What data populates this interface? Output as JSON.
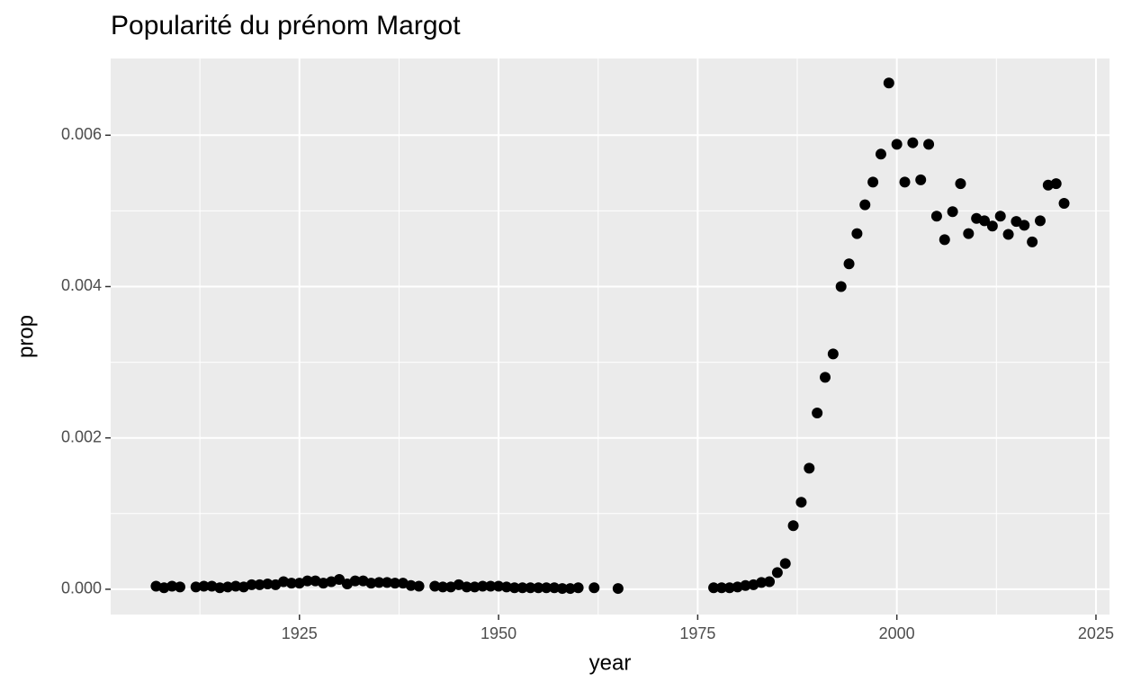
{
  "chart_data": {
    "type": "scatter",
    "title": "Popularité du prénom Margot",
    "x_label": "year",
    "y_label": "prop",
    "color": "#000000",
    "x": [
      1907,
      1908,
      1909,
      1910,
      1912,
      1913,
      1914,
      1915,
      1916,
      1917,
      1918,
      1919,
      1920,
      1921,
      1922,
      1923,
      1924,
      1925,
      1926,
      1927,
      1928,
      1929,
      1930,
      1931,
      1932,
      1933,
      1934,
      1935,
      1936,
      1937,
      1938,
      1939,
      1940,
      1942,
      1943,
      1944,
      1945,
      1946,
      1947,
      1948,
      1949,
      1950,
      1951,
      1952,
      1953,
      1954,
      1955,
      1956,
      1957,
      1958,
      1959,
      1960,
      1962,
      1965,
      1977,
      1978,
      1979,
      1980,
      1981,
      1982,
      1983,
      1984,
      1985,
      1986,
      1987,
      1988,
      1989,
      1990,
      1991,
      1992,
      1993,
      1994,
      1995,
      1996,
      1997,
      1998,
      1999,
      2000,
      2001,
      2002,
      2003,
      2004,
      2005,
      2006,
      2007,
      2008,
      2009,
      2010,
      2011,
      2012,
      2013,
      2014,
      2015,
      2016,
      2017,
      2018,
      2019,
      2020,
      2021
    ],
    "values": [
      4e-05,
      2e-05,
      4e-05,
      3e-05,
      3e-05,
      4e-05,
      4e-05,
      2e-05,
      3e-05,
      4e-05,
      3e-05,
      6e-05,
      6e-05,
      7e-05,
      6e-05,
      0.0001,
      8e-05,
      8e-05,
      0.00011,
      0.00011,
      8e-05,
      0.0001,
      0.00013,
      7e-05,
      0.00011,
      0.00011,
      8e-05,
      9e-05,
      9e-05,
      8e-05,
      8e-05,
      5e-05,
      4e-05,
      4e-05,
      3e-05,
      3e-05,
      6e-05,
      3e-05,
      3e-05,
      4e-05,
      4e-05,
      4e-05,
      3e-05,
      2e-05,
      2e-05,
      2e-05,
      2e-05,
      2e-05,
      2e-05,
      1e-05,
      1e-05,
      2e-05,
      2e-05,
      1e-05,
      2e-05,
      2e-05,
      2e-05,
      3e-05,
      5e-05,
      6e-05,
      9e-05,
      0.0001,
      0.00022,
      0.00034,
      0.00084,
      0.00115,
      0.0016,
      0.00233,
      0.0028,
      0.00311,
      0.004,
      0.0043,
      0.0047,
      0.00508,
      0.00538,
      0.00575,
      0.00669,
      0.00588,
      0.00538,
      0.0059,
      0.00541,
      0.00588,
      0.00493,
      0.00462,
      0.00499,
      0.00536,
      0.0047,
      0.0049,
      0.00487,
      0.0048,
      0.00493,
      0.00469,
      0.00486,
      0.00481,
      0.00459,
      0.00487,
      0.00534,
      0.00536,
      0.0051
    ],
    "xlim": [
      1901.3,
      2026.7
    ],
    "xticks": [
      1925,
      1950,
      1975,
      2000,
      2025
    ],
    "xminor_ticks": [
      1912.5,
      1937.5,
      1962.5,
      1987.5,
      2012.5
    ],
    "ylim": [
      -0.000334,
      0.007014
    ],
    "yticks": [
      {
        "value": 0,
        "label": "0.000"
      },
      {
        "value": 0.002,
        "label": "0.002"
      },
      {
        "value": 0.004,
        "label": "0.004"
      },
      {
        "value": 0.006,
        "label": "0.006"
      }
    ],
    "yminor_ticks": [
      0.001,
      0.003,
      0.005
    ],
    "grid": true
  }
}
